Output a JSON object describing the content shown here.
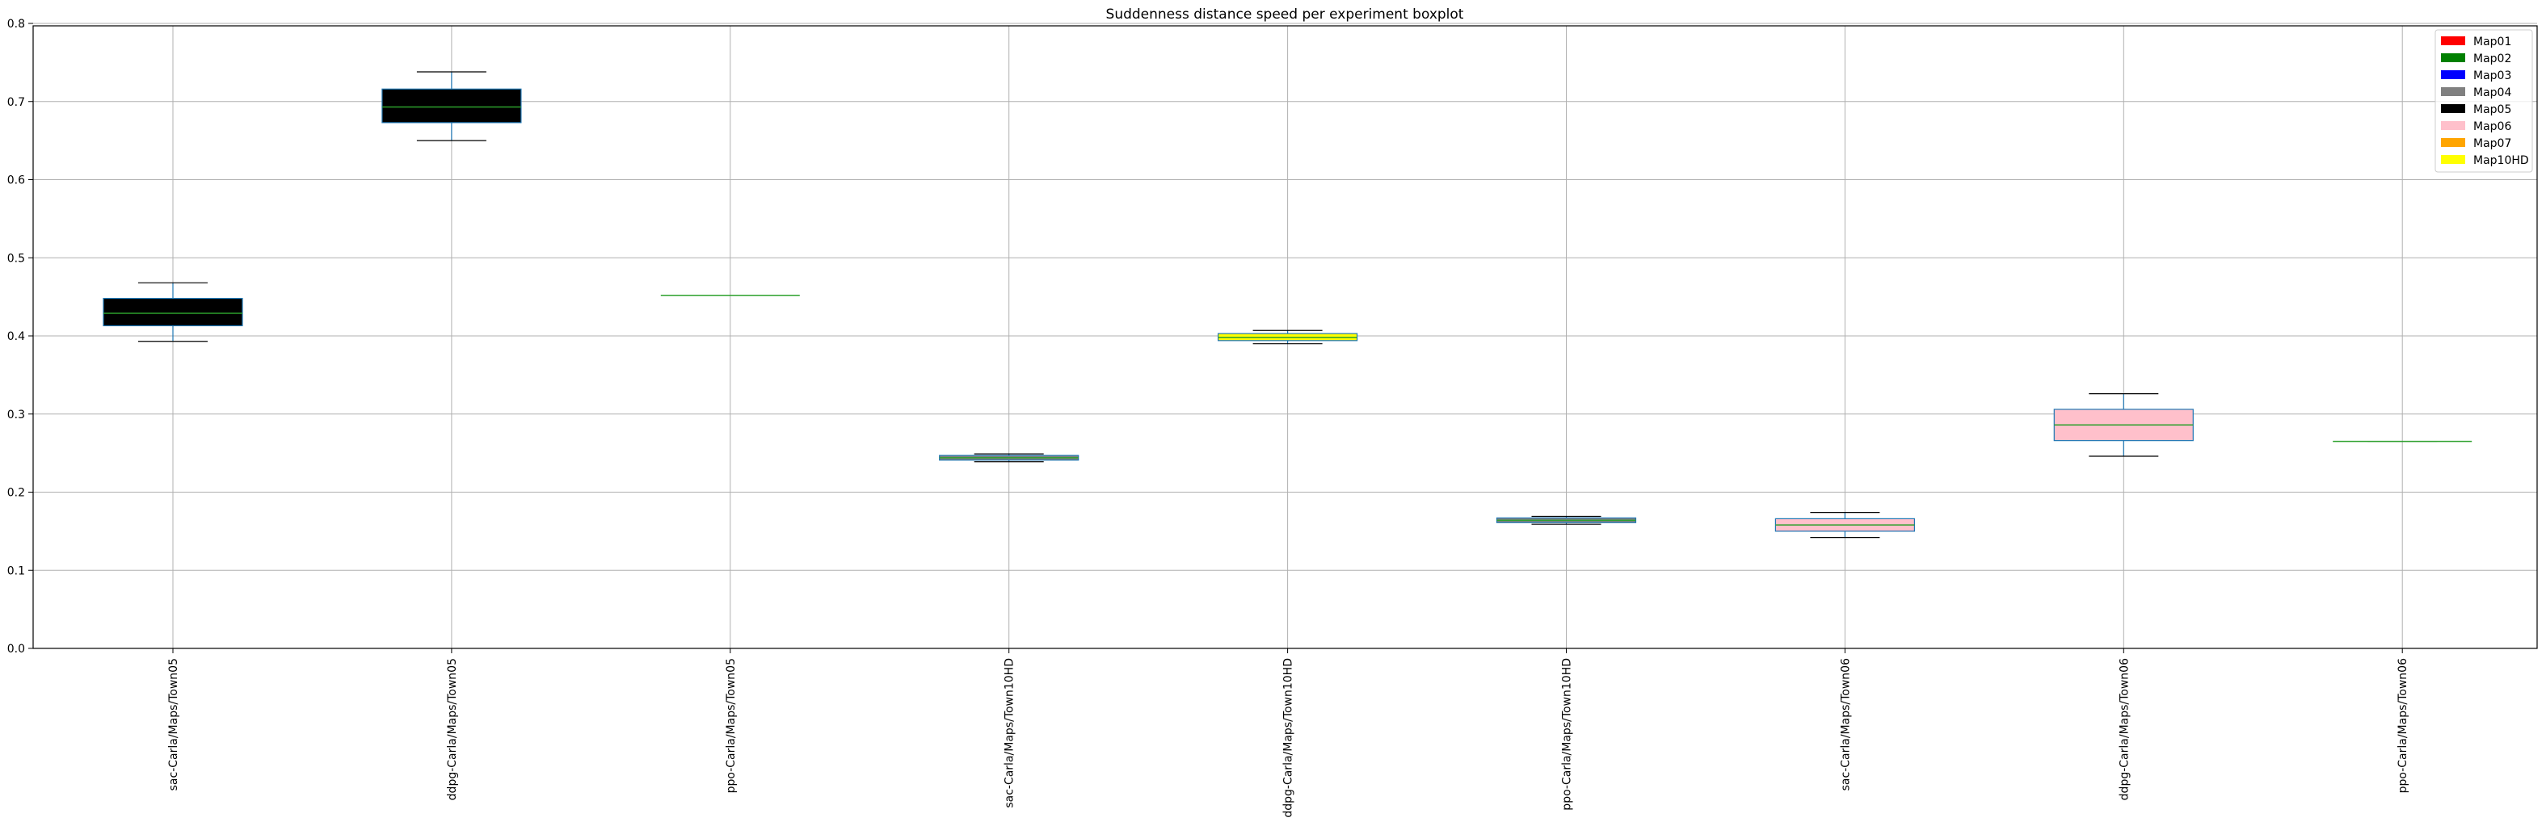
{
  "chart_data": {
    "type": "boxplot",
    "title": "Suddenness distance speed per experiment boxplot",
    "xlabel": "",
    "ylabel": "",
    "ylim": [
      0.0,
      0.8
    ],
    "yticks": [
      "0.0",
      "0.1",
      "0.2",
      "0.3",
      "0.4",
      "0.5",
      "0.6",
      "0.7",
      "0.8"
    ],
    "grid": true,
    "legend_position": "top-right",
    "legend": [
      {
        "label": "Map01",
        "color": "#ff0000"
      },
      {
        "label": "Map02",
        "color": "#008000"
      },
      {
        "label": "Map03",
        "color": "#0000ff"
      },
      {
        "label": "Map04",
        "color": "#808080"
      },
      {
        "label": "Map05",
        "color": "#000000"
      },
      {
        "label": "Map06",
        "color": "#ffc0cb"
      },
      {
        "label": "Map07",
        "color": "#ffa500"
      },
      {
        "label": "Map10HD",
        "color": "#ffff00"
      }
    ],
    "boxes": [
      {
        "label": "sac-Carla/Maps/Town05",
        "whisker_low": 0.393,
        "q1": 0.413,
        "median": 0.429,
        "q3": 0.448,
        "whisker_high": 0.468,
        "color": "#000000"
      },
      {
        "label": "ddpg-Carla/Maps/Town05",
        "whisker_low": 0.65,
        "q1": 0.673,
        "median": 0.693,
        "q3": 0.716,
        "whisker_high": 0.738,
        "color": "#000000"
      },
      {
        "label": "ppo-Carla/Maps/Town05",
        "whisker_low": 0.452,
        "q1": 0.452,
        "median": 0.452,
        "q3": 0.452,
        "whisker_high": 0.452,
        "color": "#000000"
      },
      {
        "label": "sac-Carla/Maps/Town10HD",
        "whisker_low": 0.239,
        "q1": 0.241,
        "median": 0.244,
        "q3": 0.247,
        "whisker_high": 0.249,
        "color": "#808080"
      },
      {
        "label": "ddpg-Carla/Maps/Town10HD",
        "whisker_low": 0.39,
        "q1": 0.394,
        "median": 0.398,
        "q3": 0.403,
        "whisker_high": 0.407,
        "color": "#ffff00"
      },
      {
        "label": "ppo-Carla/Maps/Town10HD",
        "whisker_low": 0.159,
        "q1": 0.161,
        "median": 0.164,
        "q3": 0.167,
        "whisker_high": 0.169,
        "color": "#808080"
      },
      {
        "label": "sac-Carla/Maps/Town06",
        "whisker_low": 0.142,
        "q1": 0.15,
        "median": 0.158,
        "q3": 0.166,
        "whisker_high": 0.174,
        "color": "#ffc0cb"
      },
      {
        "label": "ddpg-Carla/Maps/Town06",
        "whisker_low": 0.246,
        "q1": 0.266,
        "median": 0.286,
        "q3": 0.306,
        "whisker_high": 0.326,
        "color": "#ffc0cb"
      },
      {
        "label": "ppo-Carla/Maps/Town06",
        "whisker_low": 0.265,
        "q1": 0.265,
        "median": 0.265,
        "q3": 0.265,
        "whisker_high": 0.265,
        "color": "#ffc0cb"
      }
    ]
  }
}
